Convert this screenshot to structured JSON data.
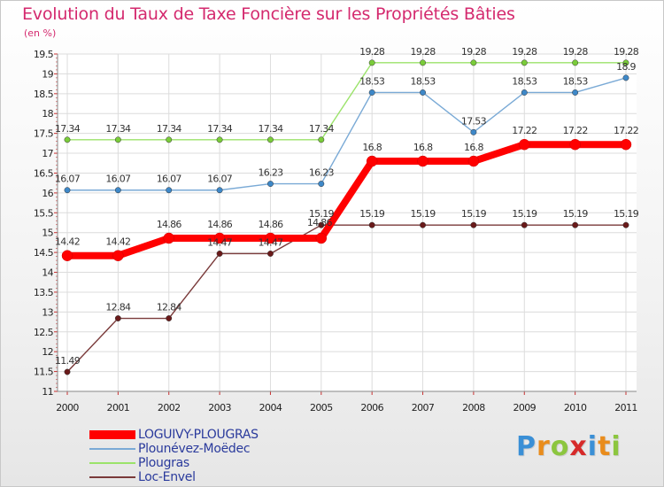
{
  "header": {
    "title": "Evolution du Taux de Taxe Foncière sur les Propriétés Bâties",
    "subtitle": "(en %)"
  },
  "logo": {
    "letters": [
      {
        "char": "P",
        "color": "#3a8fd6"
      },
      {
        "char": "r",
        "color": "#e98c1c"
      },
      {
        "char": "o",
        "color": "#8cc63f"
      },
      {
        "char": "x",
        "color": "#d62a2a"
      },
      {
        "char": "i",
        "color": "#3a8fd6"
      },
      {
        "char": "t",
        "color": "#e98c1c"
      },
      {
        "char": "i",
        "color": "#8cc63f"
      }
    ]
  },
  "chart_data": {
    "type": "line",
    "title": "Evolution du Taux de Taxe Foncière sur les Propriétés Bâties",
    "ylabel": "(en %)",
    "xlabel": "",
    "grid": true,
    "legend_position": "bottom-left",
    "x": [
      "2000",
      "2001",
      "2002",
      "2003",
      "2004",
      "2005",
      "2006",
      "2007",
      "2008",
      "2009",
      "2010",
      "2011"
    ],
    "ylim": [
      11,
      19.5
    ],
    "yticks": [
      11,
      11.5,
      12,
      12.5,
      13,
      13.5,
      14,
      14.5,
      15,
      15.5,
      16,
      16.5,
      17,
      17.5,
      18,
      18.5,
      19,
      19.5
    ],
    "ytick_labels": [
      "11",
      "11.5",
      "12",
      "12.5",
      "13",
      "13.5",
      "14",
      "14.5",
      "15",
      "15.5",
      "16",
      "16.5",
      "17",
      "17.5",
      "18",
      "18.5",
      "19",
      "19.5"
    ],
    "series": [
      {
        "name": "LOGUIVY-PLOUGRAS",
        "color": "#ff0000",
        "marker_color": "#ff0000",
        "values": [
          14.42,
          14.42,
          14.86,
          14.86,
          14.86,
          14.86,
          16.8,
          16.8,
          16.8,
          17.22,
          17.22,
          17.22
        ],
        "labels": [
          "14.42",
          "14.42",
          "14.86",
          "14.86",
          "14.86",
          "",
          "16.8",
          "16.8",
          "16.8",
          "17.22",
          "17.22",
          "17.22"
        ]
      },
      {
        "name": "Plounévez-Moëdec",
        "color": "#7aaad6",
        "marker_color": "#3e88c8",
        "values": [
          16.07,
          16.07,
          16.07,
          16.07,
          16.23,
          16.23,
          18.53,
          18.53,
          17.53,
          18.53,
          18.53,
          18.9
        ],
        "labels": [
          "16.07",
          "16.07",
          "16.07",
          "16.07",
          "16.23",
          "16.23",
          "18.53",
          "18.53",
          "17.53",
          "18.53",
          "18.53",
          "18.9"
        ]
      },
      {
        "name": "Plougras",
        "color": "#9be36a",
        "marker_color": "#7acc3a",
        "values": [
          17.34,
          17.34,
          17.34,
          17.34,
          17.34,
          17.34,
          19.28,
          19.28,
          19.28,
          19.28,
          19.28,
          19.28
        ],
        "labels": [
          "17.34",
          "17.34",
          "17.34",
          "17.34",
          "17.34",
          "17.34",
          "19.28",
          "19.28",
          "19.28",
          "19.28",
          "19.28",
          "19.28"
        ]
      },
      {
        "name": "Loc-Envel",
        "color": "#7a3a3a",
        "marker_color": "#6a1a1a",
        "values": [
          11.49,
          12.84,
          12.84,
          14.47,
          14.47,
          15.19,
          15.19,
          15.19,
          15.19,
          15.19,
          15.19,
          15.19
        ],
        "labels": [
          "11.49",
          "12.84",
          "12.84",
          "14.47",
          "14.47",
          "15.19",
          "15.19",
          "15.19",
          "15.19",
          "15.19",
          "15.19",
          "15.19"
        ]
      }
    ],
    "extra_labels": [
      "14.86"
    ]
  }
}
